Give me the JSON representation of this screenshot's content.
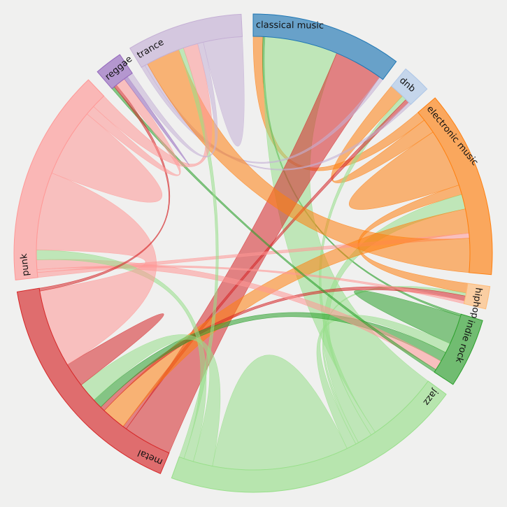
{
  "chart_data": {
    "type": "chord",
    "title": "",
    "groups": [
      {
        "name": "classical music",
        "color": "#1f77b4"
      },
      {
        "name": "dnb",
        "color": "#aec7e8"
      },
      {
        "name": "electronic music",
        "color": "#ff7f0e"
      },
      {
        "name": "hiphop",
        "color": "#ffbb78"
      },
      {
        "name": "indie rock",
        "color": "#2ca02c"
      },
      {
        "name": "jazz",
        "color": "#98df8a"
      },
      {
        "name": "metal",
        "color": "#d62728"
      },
      {
        "name": "punk",
        "color": "#ff9896"
      },
      {
        "name": "reggae",
        "color": "#9467bd"
      },
      {
        "name": "trance",
        "color": "#c5b0d5"
      }
    ],
    "chords": [
      {
        "source": "jazz",
        "target": "classical music",
        "value": 7
      },
      {
        "source": "classical music",
        "target": "metal",
        "value": 5
      },
      {
        "source": "classical music",
        "target": "electronic music",
        "value": 1
      },
      {
        "source": "classical music",
        "target": "jazz",
        "value": 0.5
      },
      {
        "source": "classical music",
        "target": "trance",
        "value": 0.4
      },
      {
        "source": "classical music",
        "target": "indie rock",
        "value": 0.2
      },
      {
        "source": "dnb",
        "target": "electronic music",
        "value": 1.5
      },
      {
        "source": "dnb",
        "target": "jazz",
        "value": 0.5
      },
      {
        "source": "dnb",
        "target": "metal",
        "value": 0.4
      },
      {
        "source": "dnb",
        "target": "trance",
        "value": 0.3
      },
      {
        "source": "electronic music",
        "target": "electronic music",
        "value": 6
      },
      {
        "source": "electronic music",
        "target": "metal",
        "value": 2.5
      },
      {
        "source": "electronic music",
        "target": "jazz",
        "value": 1.5
      },
      {
        "source": "electronic music",
        "target": "hiphop",
        "value": 1
      },
      {
        "source": "electronic music",
        "target": "trance",
        "value": 3.5
      },
      {
        "source": "electronic music",
        "target": "punk",
        "value": 0.5
      },
      {
        "source": "hiphop",
        "target": "metal",
        "value": 0.5
      },
      {
        "source": "hiphop",
        "target": "punk",
        "value": 0.3
      },
      {
        "source": "hiphop",
        "target": "jazz",
        "value": 0.3
      },
      {
        "source": "indie rock",
        "target": "indie rock",
        "value": 3
      },
      {
        "source": "indie rock",
        "target": "punk",
        "value": 1
      },
      {
        "source": "indie rock",
        "target": "metal",
        "value": 1
      },
      {
        "source": "indie rock",
        "target": "jazz",
        "value": 1
      },
      {
        "source": "indie rock",
        "target": "reggae",
        "value": 0.3
      },
      {
        "source": "jazz",
        "target": "jazz",
        "value": 14
      },
      {
        "source": "jazz",
        "target": "metal",
        "value": 2
      },
      {
        "source": "jazz",
        "target": "punk",
        "value": 1
      },
      {
        "source": "jazz",
        "target": "trance",
        "value": 0.5
      },
      {
        "source": "metal",
        "target": "metal",
        "value": 2.5
      },
      {
        "source": "metal",
        "target": "punk",
        "value": 8
      },
      {
        "source": "metal",
        "target": "reggae",
        "value": 0.3
      },
      {
        "source": "punk",
        "target": "punk",
        "value": 7
      },
      {
        "source": "punk",
        "target": "reggae",
        "value": 1
      },
      {
        "source": "punk",
        "target": "trance",
        "value": 1.5
      },
      {
        "source": "reggae",
        "target": "reggae",
        "value": 0.4
      },
      {
        "source": "reggae",
        "target": "trance",
        "value": 0.6
      },
      {
        "source": "trance",
        "target": "trance",
        "value": 4
      }
    ]
  }
}
